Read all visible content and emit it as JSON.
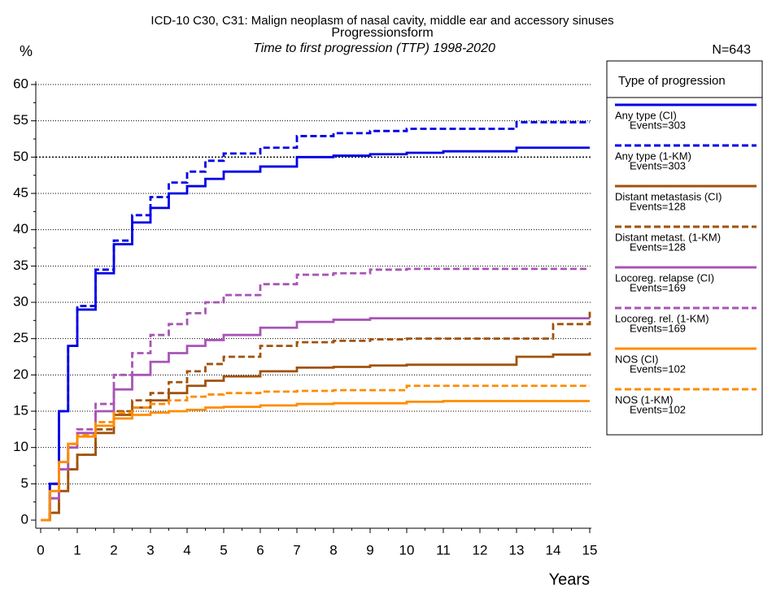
{
  "chart_data": {
    "type": "line",
    "title": "ICD-10 C30, C31: Malign neoplasm of nasal cavity, middle ear and accessory sinuses",
    "subtitle": "Progressionsform",
    "subtitle2": "Time to first progression (TTP) 1998-2020",
    "y_label": "%",
    "x_label": "Years",
    "n_label": "N=643",
    "legend_title": "Type of progression",
    "step": true,
    "xlim": [
      0,
      15
    ],
    "ylim": [
      0,
      60
    ],
    "xticks": [
      0,
      1,
      2,
      3,
      4,
      5,
      6,
      7,
      8,
      9,
      10,
      11,
      12,
      13,
      14,
      15
    ],
    "yticks": [
      0,
      5,
      10,
      15,
      20,
      25,
      30,
      35,
      40,
      45,
      50,
      55,
      60
    ],
    "grid": true,
    "x": [
      0,
      0.25,
      0.5,
      0.75,
      1,
      1.5,
      2,
      2.5,
      3,
      3.5,
      4,
      4.5,
      5,
      6,
      7,
      8,
      9,
      10,
      11,
      12,
      13,
      14,
      15
    ],
    "series": [
      {
        "name": "Any type (CI)",
        "events": "Events=303",
        "color": "#0000e6",
        "dash": false,
        "values": [
          0,
          5,
          15,
          24,
          29,
          34,
          38,
          41,
          43,
          45,
          46,
          47,
          48,
          48.7,
          50,
          50.2,
          50.4,
          50.6,
          50.8,
          50.8,
          51.3,
          51.3,
          51.3
        ]
      },
      {
        "name": "Any type (1-KM)",
        "events": "Events=303",
        "color": "#0000e6",
        "dash": true,
        "values": [
          0,
          5,
          15,
          24,
          29.5,
          34.5,
          38.5,
          42,
          44.5,
          46.5,
          48,
          49.5,
          50.5,
          51.3,
          52.9,
          53.3,
          53.6,
          53.9,
          53.9,
          53.9,
          54.8,
          54.8,
          54.8
        ]
      },
      {
        "name": "Distant metastasis (CI)",
        "events": "Events=128",
        "color": "#a0520a",
        "dash": false,
        "values": [
          0,
          1,
          4,
          7,
          9,
          12,
          14.5,
          15.5,
          16.5,
          17.5,
          18.5,
          19.2,
          19.8,
          20.5,
          21,
          21.1,
          21.3,
          21.4,
          21.4,
          21.4,
          22.5,
          22.8,
          23.1
        ]
      },
      {
        "name": "Distant metast. (1-KM)",
        "events": "Events=128",
        "color": "#a0520a",
        "dash": true,
        "values": [
          0,
          1,
          4,
          7,
          9,
          12.5,
          15,
          16.5,
          17.5,
          19,
          20.5,
          21.5,
          22.5,
          24,
          24.5,
          24.7,
          24.9,
          25,
          25,
          25,
          25,
          27,
          28.7
        ]
      },
      {
        "name": "Locoreg. relapse (CI)",
        "events": "Events=169",
        "color": "#a855b5",
        "dash": false,
        "values": [
          0,
          3,
          7,
          10,
          12,
          15,
          18,
          20,
          21.8,
          23,
          24,
          24.8,
          25.5,
          26.5,
          27.3,
          27.6,
          27.8,
          27.8,
          27.8,
          27.8,
          27.8,
          27.8,
          27.8
        ]
      },
      {
        "name": "Locoreg. rel. (1-KM)",
        "events": "Events=169",
        "color": "#a855b5",
        "dash": true,
        "values": [
          0,
          3,
          7,
          10,
          12.5,
          16,
          20,
          23,
          25.5,
          27,
          28.5,
          30,
          31,
          32.5,
          33.8,
          34,
          34.5,
          34.6,
          34.6,
          34.6,
          34.6,
          34.6,
          34.6
        ]
      },
      {
        "name": "NOS (CI)",
        "events": "Events=102",
        "color": "#ff8c00",
        "dash": false,
        "values": [
          0,
          4,
          8,
          10.5,
          11.5,
          13,
          14,
          14.5,
          14.8,
          15,
          15.2,
          15.5,
          15.6,
          15.8,
          16,
          16.1,
          16.1,
          16.3,
          16.4,
          16.4,
          16.4,
          16.4,
          16.4
        ]
      },
      {
        "name": "NOS (1-KM)",
        "events": "Events=102",
        "color": "#ff8c00",
        "dash": true,
        "values": [
          0,
          4,
          8,
          10.5,
          11.7,
          13.5,
          14.8,
          15.5,
          16,
          16.5,
          17,
          17.3,
          17.5,
          17.7,
          17.8,
          17.9,
          17.9,
          18.5,
          18.5,
          18.5,
          18.5,
          18.5,
          18.5
        ]
      }
    ]
  }
}
